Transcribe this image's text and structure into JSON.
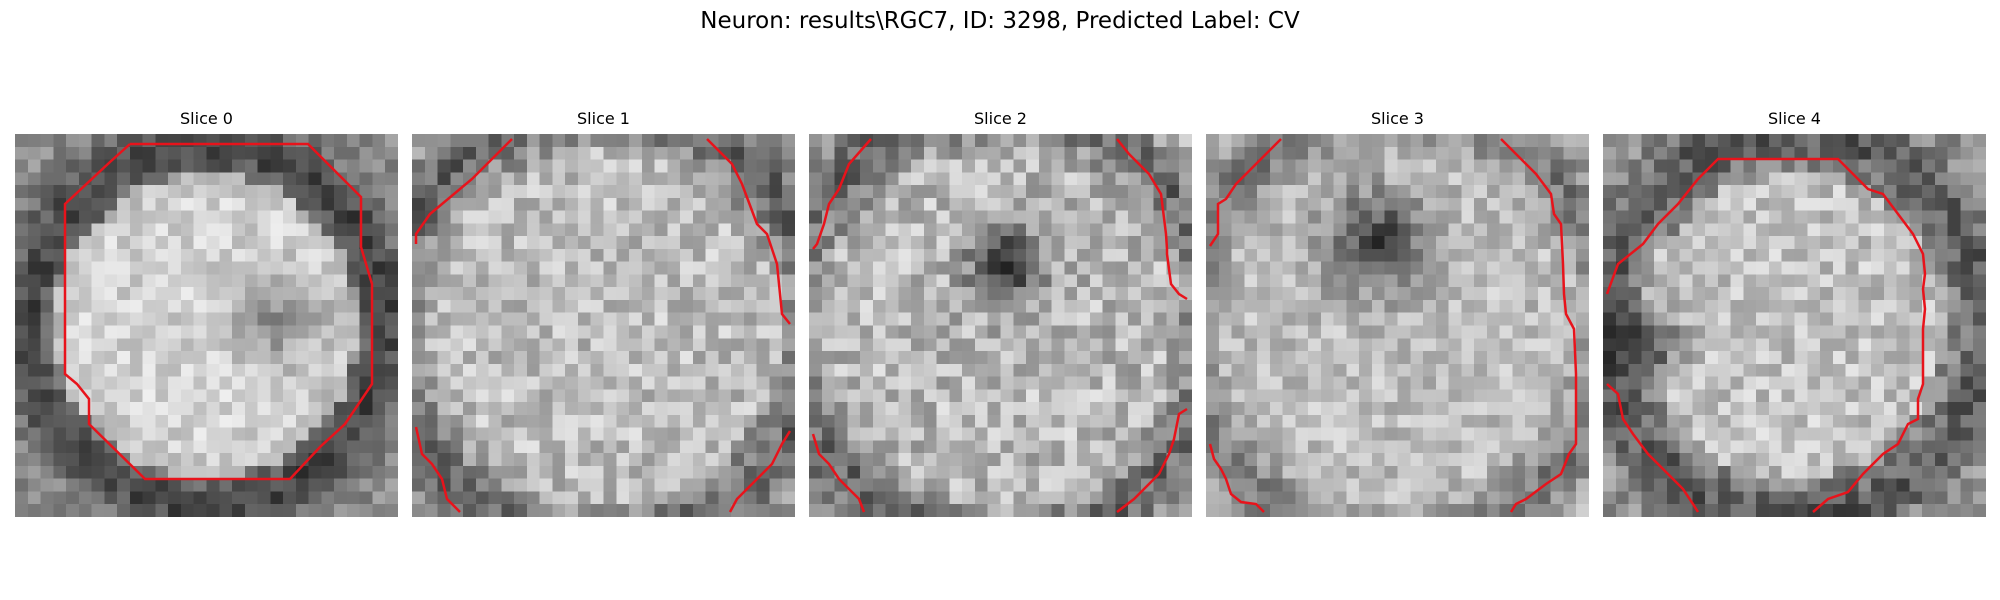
{
  "figure": {
    "title": "Neuron: results\\RGC7, ID: 3298, Predicted Label: CV"
  },
  "slices": [
    {
      "title": "Slice 0"
    },
    {
      "title": "Slice 1"
    },
    {
      "title": "Slice 2"
    },
    {
      "title": "Slice 3"
    },
    {
      "title": "Slice 4"
    }
  ],
  "colors": {
    "contour": "#e8131b",
    "background": "#ffffff"
  }
}
